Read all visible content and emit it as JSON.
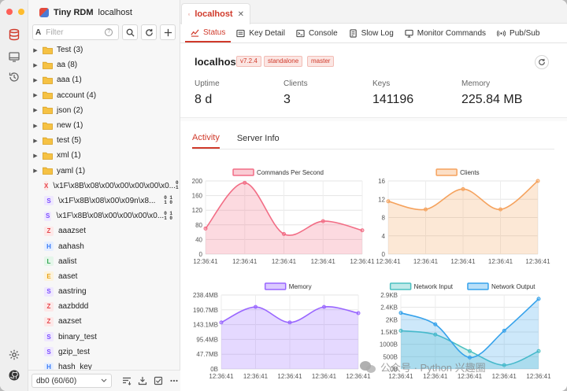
{
  "window": {
    "app_name": "Tiny RDM",
    "host": "localhost"
  },
  "sidebar": {
    "search": {
      "prefix": "A",
      "placeholder": "Filter",
      "help": "?"
    },
    "tree": [
      {
        "kind": "folder",
        "label": "Test (3)"
      },
      {
        "kind": "folder",
        "label": "aa (8)"
      },
      {
        "kind": "folder",
        "label": "aaa (1)"
      },
      {
        "kind": "folder",
        "label": "account (4)"
      },
      {
        "kind": "folder",
        "label": "json (2)"
      },
      {
        "kind": "folder",
        "label": "new (1)"
      },
      {
        "kind": "folder",
        "label": "test (5)"
      },
      {
        "kind": "folder",
        "label": "xml (1)"
      },
      {
        "kind": "folder",
        "label": "yaml (1)"
      },
      {
        "kind": "key",
        "type": "X",
        "color": "#e5484d",
        "bg": "#fde8e8",
        "label": "\\x1F\\x8B\\x08\\x00\\x00\\x00\\x00\\x0...",
        "binary": true
      },
      {
        "kind": "key",
        "type": "S",
        "color": "#7c4dff",
        "bg": "#efe8ff",
        "label": "\\x1F\\x8B\\x08\\x00\\x09n\\x8...",
        "binary": true
      },
      {
        "kind": "key",
        "type": "S",
        "color": "#7c4dff",
        "bg": "#efe8ff",
        "label": "\\x1F\\x8B\\x08\\x00\\x00\\x00\\x0...",
        "binary": true
      },
      {
        "kind": "key",
        "type": "Z",
        "color": "#e5484d",
        "bg": "#fde8e8",
        "label": "aaazset"
      },
      {
        "kind": "key",
        "type": "H",
        "color": "#3478f6",
        "bg": "#e6efff",
        "label": "aahash"
      },
      {
        "kind": "key",
        "type": "L",
        "color": "#2ea44f",
        "bg": "#e5f6ea",
        "label": "aalist"
      },
      {
        "kind": "key",
        "type": "E",
        "color": "#e8a317",
        "bg": "#fdf3dc",
        "label": "aaset"
      },
      {
        "kind": "key",
        "type": "S",
        "color": "#7c4dff",
        "bg": "#efe8ff",
        "label": "aastring"
      },
      {
        "kind": "key",
        "type": "Z",
        "color": "#e5484d",
        "bg": "#fde8e8",
        "label": "aazbddd"
      },
      {
        "kind": "key",
        "type": "Z",
        "color": "#e5484d",
        "bg": "#fde8e8",
        "label": "aazset"
      },
      {
        "kind": "key",
        "type": "S",
        "color": "#7c4dff",
        "bg": "#efe8ff",
        "label": "binary_test"
      },
      {
        "kind": "key",
        "type": "S",
        "color": "#7c4dff",
        "bg": "#efe8ff",
        "label": "gzip_test"
      },
      {
        "kind": "key",
        "type": "H",
        "color": "#3478f6",
        "bg": "#e6efff",
        "label": "hash_key"
      }
    ],
    "binary_glyph": [
      "0 1",
      "1 0"
    ],
    "db_select": "db0 (60/60)"
  },
  "tab": {
    "label": "localhost",
    "close": "✕"
  },
  "subtabs": [
    {
      "label": "Status",
      "icon": "status-icon",
      "active": true
    },
    {
      "label": "Key Detail",
      "icon": "key-detail-icon",
      "active": false
    },
    {
      "label": "Console",
      "icon": "console-icon",
      "active": false
    },
    {
      "label": "Slow Log",
      "icon": "slow-log-icon",
      "active": false
    },
    {
      "label": "Monitor Commands",
      "icon": "monitor-icon",
      "active": false
    },
    {
      "label": "Pub/Sub",
      "icon": "pubsub-icon",
      "active": false
    }
  ],
  "server": {
    "name": "localhost",
    "tags": [
      "v7.2.4",
      "standalone",
      "master"
    ],
    "stats": [
      {
        "label": "Uptime",
        "value": "8 d"
      },
      {
        "label": "Clients",
        "value": "3"
      },
      {
        "label": "Keys",
        "value": "141196"
      },
      {
        "label": "Memory",
        "value": "225.84 MB"
      }
    ]
  },
  "info_tabs": [
    {
      "label": "Activity",
      "active": true
    },
    {
      "label": "Server Info",
      "active": false
    }
  ],
  "watermark": "公众号 · Python 兴趣圈",
  "colors": {
    "accent": "#d03a2b",
    "cps": "#f26d85",
    "clients": "#f5a25d",
    "memory": "#9966ff",
    "net_in": "#4bc0c0",
    "net_out": "#36a2eb"
  },
  "chart_data": [
    {
      "type": "area",
      "series": [
        {
          "name": "Commands Per Second",
          "color": "#f26d85",
          "values": [
            70,
            195,
            55,
            90,
            65
          ]
        }
      ],
      "x": [
        "12:36:41",
        "12:36:41",
        "12:36:41",
        "12:36:41",
        "12:36:41"
      ],
      "ylim": [
        0,
        200
      ],
      "yticks": [
        "200",
        "160",
        "120",
        "80",
        "40",
        "0"
      ],
      "legend": "top"
    },
    {
      "type": "area",
      "series": [
        {
          "name": "Clients",
          "color": "#f5a25d",
          "values": [
            13,
            11,
            16,
            11,
            18
          ]
        }
      ],
      "x": [
        "12:36:41",
        "12:36:41",
        "12:36:41",
        "12:36:41",
        "12:36:41"
      ],
      "ylim": [
        0,
        18
      ],
      "yticks": [
        "16",
        "12",
        "8",
        "4",
        "0"
      ],
      "legend": "top"
    },
    {
      "type": "area",
      "series": [
        {
          "name": "Memory",
          "color": "#9966ff",
          "values": [
            150,
            200,
            150,
            200,
            180
          ]
        }
      ],
      "x": [
        "12:36:41",
        "12:36:41",
        "12:36:41",
        "12:36:41",
        "12:36:41"
      ],
      "ylim": [
        0,
        238.4
      ],
      "yticks": [
        "238.4MB",
        "190.7MB",
        "143.1MB",
        "95.4MB",
        "47.7MB",
        "0B"
      ],
      "legend": "top"
    },
    {
      "type": "area",
      "series": [
        {
          "name": "Network Input",
          "color": "#4bc0c0",
          "values": [
            1.5,
            1.35,
            0.7,
            0.15,
            0.7
          ]
        },
        {
          "name": "Network Output",
          "color": "#36a2eb",
          "values": [
            2.2,
            1.75,
            0.45,
            1.5,
            2.75
          ]
        }
      ],
      "x": [
        "12:36:41",
        "12:36:41",
        "12:36:41",
        "12:36:41",
        "12:36:41"
      ],
      "ylim": [
        0,
        2.9
      ],
      "yticks": [
        "2.9KB",
        "2.4KB",
        "2KB",
        "1.5KB",
        "1000B",
        "500B",
        "0B"
      ],
      "legend": "top"
    }
  ]
}
